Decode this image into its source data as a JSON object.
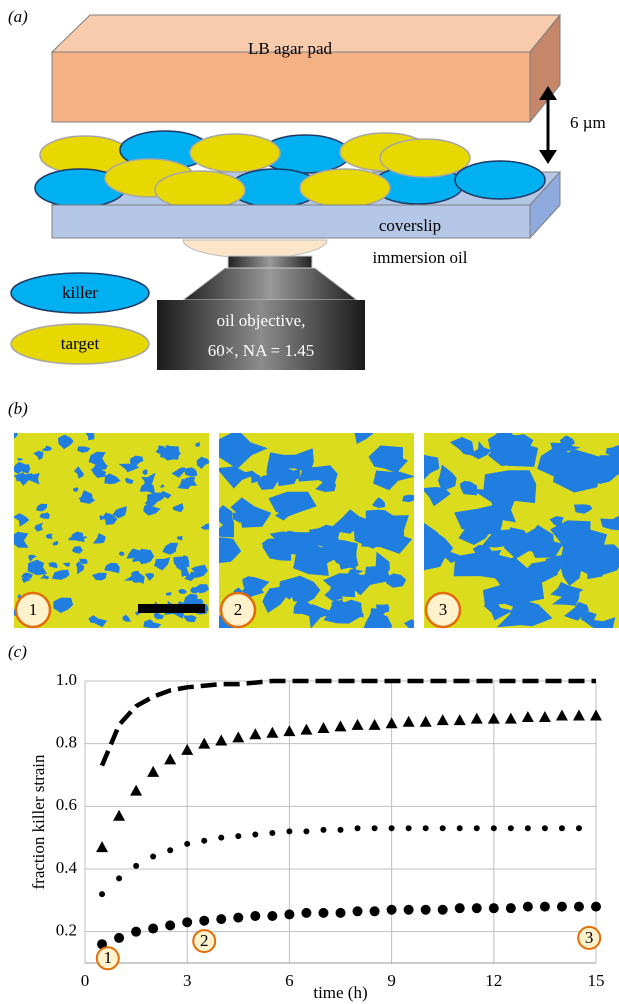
{
  "panel_labels": [
    "(a)",
    "(b)",
    "(c)"
  ],
  "diagram": {
    "agar_pad": "LB agar pad",
    "gap": "6 µm",
    "coverslip": "coverslip",
    "immersion_oil": "immersion oil",
    "legend": [
      "killer",
      "target"
    ],
    "objective": [
      "oil objective,",
      "60×, NA = 1.45"
    ]
  },
  "images": {
    "labels": [
      "1",
      "2",
      "3"
    ]
  },
  "chart_data": {
    "type": "line",
    "ylabel": "fraction killer strain",
    "xlabel": "time (h)",
    "x": [
      0.5,
      1,
      1.5,
      2,
      2.5,
      3,
      3.5,
      4,
      4.5,
      5,
      5.5,
      6,
      6.5,
      7,
      7.5,
      8,
      8.5,
      9,
      9.5,
      10,
      10.5,
      11,
      11.5,
      12,
      12.5,
      13,
      13.5,
      14,
      14.5,
      15
    ],
    "series": [
      {
        "color": "#000000",
        "marker": "dash",
        "values": [
          0.73,
          0.86,
          0.92,
          0.95,
          0.97,
          0.98,
          0.985,
          0.99,
          0.99,
          0.995,
          1.0,
          1.0,
          1.0,
          1.0,
          1.0,
          1.0,
          1.0,
          1.0,
          1.0,
          1.0,
          1.0,
          1.0,
          1.0,
          1.0,
          1.0,
          1.0,
          1.0,
          1.0,
          1.0,
          1.0
        ]
      },
      {
        "color": "#000000",
        "marker": "triangle",
        "values": [
          0.47,
          0.57,
          0.65,
          0.71,
          0.75,
          0.78,
          0.8,
          0.81,
          0.82,
          0.83,
          0.835,
          0.84,
          0.845,
          0.85,
          0.855,
          0.86,
          0.86,
          0.865,
          0.87,
          0.87,
          0.875,
          0.875,
          0.88,
          0.88,
          0.88,
          0.885,
          0.885,
          0.89,
          0.89,
          0.89
        ]
      },
      {
        "color": "#000000",
        "marker": "dot",
        "values": [
          0.32,
          0.37,
          0.41,
          0.44,
          0.46,
          0.48,
          0.49,
          0.5,
          0.505,
          0.51,
          0.515,
          0.52,
          0.52,
          0.525,
          0.525,
          0.53,
          0.53,
          0.53,
          0.53,
          0.53,
          0.53,
          0.53,
          0.53,
          0.53,
          0.53,
          0.53,
          0.53,
          0.53,
          0.53,
          null
        ]
      },
      {
        "color": "#000000",
        "marker": "dot-large",
        "values": [
          0.16,
          0.18,
          0.2,
          0.21,
          0.22,
          0.23,
          0.235,
          0.24,
          0.245,
          0.25,
          0.25,
          0.255,
          0.26,
          0.26,
          0.26,
          0.265,
          0.265,
          0.27,
          0.27,
          0.27,
          0.27,
          0.275,
          0.275,
          0.275,
          0.275,
          0.28,
          0.28,
          0.28,
          0.28,
          0.28
        ]
      }
    ],
    "xlim": [
      0,
      15
    ],
    "xticks": [
      0,
      3,
      6,
      9,
      12,
      15
    ],
    "ylim": [
      0.1,
      1.0
    ],
    "yticks": [
      0.2,
      0.4,
      0.6,
      0.8,
      {
        "value": 1.0,
        "label": "1.0"
      }
    ],
    "grid": true,
    "annotations": [
      {
        "text": "1",
        "x": 0.67,
        "y": 0.115
      },
      {
        "text": "2",
        "x": 3.5,
        "y": 0.17
      },
      {
        "text": "3",
        "x": 14.8,
        "y": 0.18
      }
    ]
  }
}
